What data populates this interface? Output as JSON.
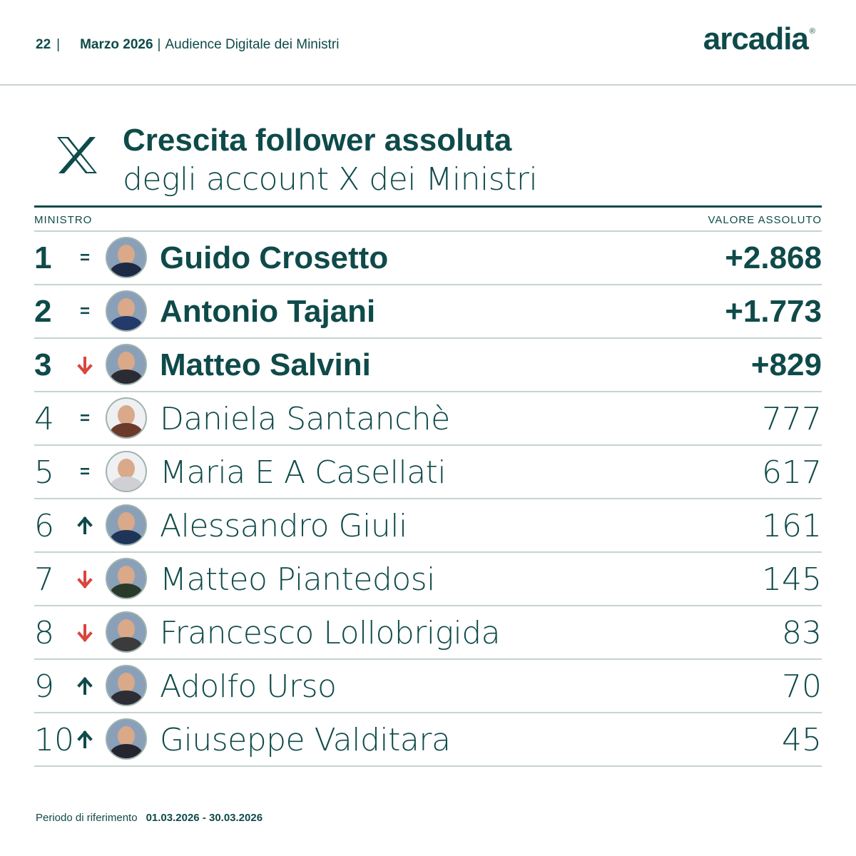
{
  "header": {
    "page_number": "22",
    "separator": "|",
    "month": "Marzo 2026",
    "separator2": "|",
    "report_title": "Audience Digitale dei Ministri",
    "logo": "arcadia",
    "logo_mark": "®"
  },
  "title": {
    "icon": "x-logo-icon",
    "main": "Crescita follower assoluta",
    "sub": "degli account X dei Ministri"
  },
  "table": {
    "col_minister": "MINISTRO",
    "col_value": "VALORE ASSOLUTO",
    "rows": [
      {
        "rank": "1",
        "trend": "=",
        "trend_type": "equal",
        "name": "Guido Crosetto",
        "value": "+2.868",
        "highlight": true
      },
      {
        "rank": "2",
        "trend": "=",
        "trend_type": "equal",
        "name": "Antonio Tajani",
        "value": "+1.773",
        "highlight": true
      },
      {
        "rank": "3",
        "trend": "down",
        "trend_type": "down",
        "name": "Matteo Salvini",
        "value": "+829",
        "highlight": true
      },
      {
        "rank": "4",
        "trend": "=",
        "trend_type": "equal",
        "name": "Daniela Santanchè",
        "value": "777",
        "highlight": false
      },
      {
        "rank": "5",
        "trend": "=",
        "trend_type": "equal",
        "name": "Maria E A Casellati",
        "value": "617",
        "highlight": false
      },
      {
        "rank": "6",
        "trend": "up",
        "trend_type": "up",
        "name": "Alessandro Giuli",
        "value": "161",
        "highlight": false
      },
      {
        "rank": "7",
        "trend": "down",
        "trend_type": "down",
        "name": "Matteo Piantedosi",
        "value": "145",
        "highlight": false
      },
      {
        "rank": "8",
        "trend": "down",
        "trend_type": "down",
        "name": "Francesco Lollobrigida",
        "value": "83",
        "highlight": false
      },
      {
        "rank": "9",
        "trend": "up",
        "trend_type": "up",
        "name": "Adolfo Urso",
        "value": "70",
        "highlight": false
      },
      {
        "rank": "10",
        "trend": "up",
        "trend_type": "up",
        "name": "Giuseppe Valditara",
        "value": "45",
        "highlight": false
      }
    ]
  },
  "footer": {
    "label": "Periodo di riferimento",
    "dates": "01.03.2026 - 30.03.2026"
  },
  "colors": {
    "primary": "#0f4a4a",
    "divider": "#c7d3d0",
    "trend_down": "#d9463e",
    "trend_up": "#0f4a4a"
  }
}
